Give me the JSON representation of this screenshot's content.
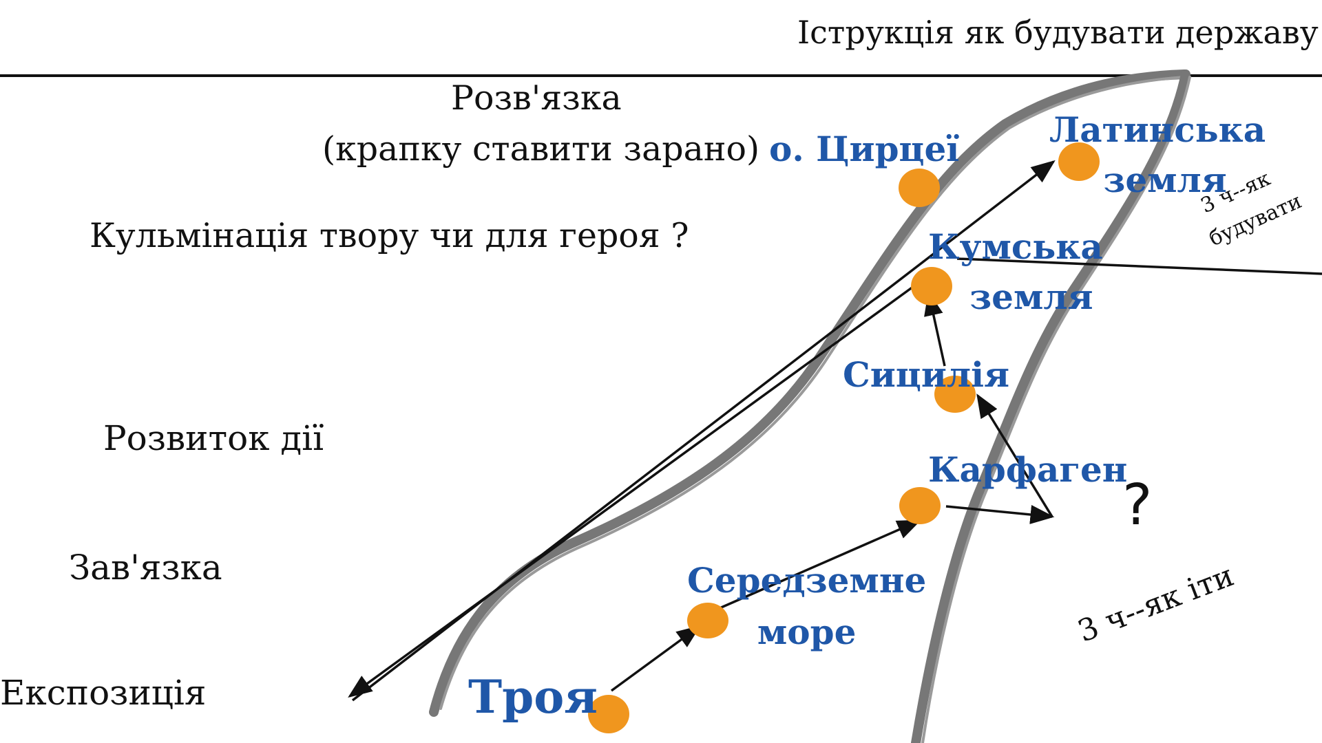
{
  "header": {
    "title": "Іструкція як будувати  державу"
  },
  "plot_stages": {
    "resolution": "Розв'язка",
    "resolution_note": "(крапку  ставити зарано)",
    "climax": "Кульмінація   твору   чи  для  героя ?",
    "rising_action": "Розвиток  дії",
    "complication": "Зав'язка",
    "exposition": "Експозиція"
  },
  "places": [
    {
      "id": "troy",
      "lines": [
        "Троя"
      ]
    },
    {
      "id": "mediterranean",
      "lines": [
        "Середземне",
        "море"
      ]
    },
    {
      "id": "carthage",
      "lines": [
        "Карфаген"
      ]
    },
    {
      "id": "sicily",
      "lines": [
        "Сицилія"
      ]
    },
    {
      "id": "cumae",
      "lines": [
        "Кумська",
        "земля"
      ]
    },
    {
      "id": "circe",
      "lines": [
        "о. Цирцеї"
      ]
    },
    {
      "id": "latium",
      "lines": [
        "Латинська",
        "земля"
      ]
    }
  ],
  "annotations": {
    "question_mark": "?",
    "part_how_to_go": "3 ч--як  іти",
    "part_how_to_build_1": "3 ч--як",
    "part_how_to_build_2": "будувати"
  },
  "colors": {
    "dot": "#f0961e",
    "place_text": "#1f57a8",
    "river": "#777777",
    "lines": "#111111"
  }
}
